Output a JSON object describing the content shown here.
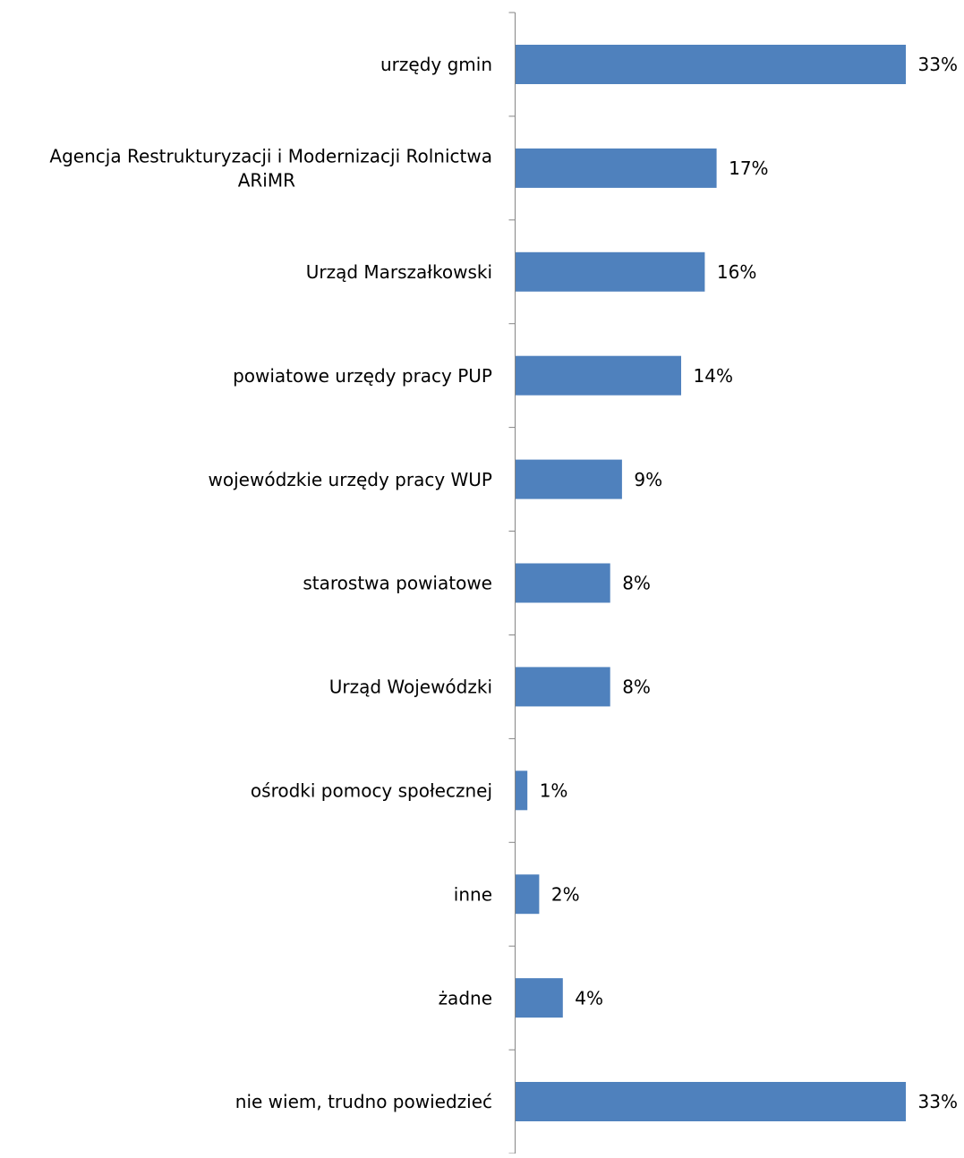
{
  "chart_data": {
    "type": "bar",
    "orientation": "horizontal",
    "title": "",
    "xlabel": "",
    "ylabel": "",
    "grid": false,
    "legend": "none",
    "value_format": "percent",
    "xlim": [
      0,
      33
    ],
    "bar_color": "#4F81BD",
    "categories": [
      [
        "urzędy gmin"
      ],
      [
        "Agencja Restrukturyzacji i Modernizacji Rolnictwa",
        "ARiMR"
      ],
      [
        "Urząd Marszałkowski"
      ],
      [
        "powiatowe urzędy pracy PUP"
      ],
      [
        "wojewódzkie urzędy pracy WUP"
      ],
      [
        "starostwa powiatowe"
      ],
      [
        "Urząd Wojewódzki"
      ],
      [
        "ośrodki pomocy społecznej"
      ],
      [
        "inne"
      ],
      [
        "żadne"
      ],
      [
        "nie wiem, trudno powiedzieć"
      ]
    ],
    "values": [
      33,
      17,
      16,
      14,
      9,
      8,
      8,
      1,
      2,
      4,
      33
    ],
    "data_labels": [
      "33%",
      "17%",
      "16%",
      "14%",
      "9%",
      "8%",
      "8%",
      "1%",
      "2%",
      "4%",
      "33%"
    ]
  }
}
